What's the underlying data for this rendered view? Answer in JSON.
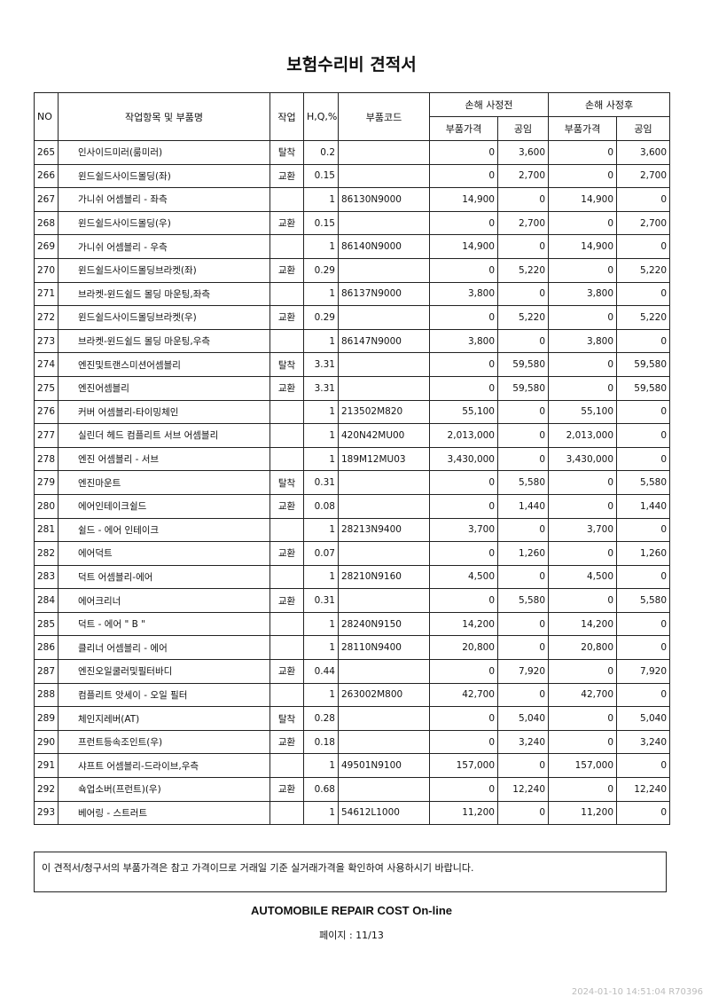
{
  "title": "보험수리비 견적서",
  "headers": {
    "no": "NO",
    "name": "작업항목 및 부품명",
    "work": "작업",
    "hq": "H,Q,%",
    "code": "부품코드",
    "before": "손해 사정전",
    "after": "손해 사정후",
    "part_price": "부품가격",
    "labor": "공임"
  },
  "rows": [
    [
      "265",
      "인사이드미러(룸미러)",
      "탈착",
      "0.2",
      "",
      "0",
      "3,600",
      "0",
      "3,600"
    ],
    [
      "266",
      "윈드쉴드사이드몰딩(좌)",
      "교환",
      "0.15",
      "",
      "0",
      "2,700",
      "0",
      "2,700"
    ],
    [
      "267",
      "가니쉬 어셈블리 - 좌측",
      "",
      "1",
      "86130N9000",
      "14,900",
      "0",
      "14,900",
      "0"
    ],
    [
      "268",
      "윈드쉴드사이드몰딩(우)",
      "교환",
      "0.15",
      "",
      "0",
      "2,700",
      "0",
      "2,700"
    ],
    [
      "269",
      "가니쉬 어셈블리 - 우측",
      "",
      "1",
      "86140N9000",
      "14,900",
      "0",
      "14,900",
      "0"
    ],
    [
      "270",
      "윈드쉴드사이드몰딩브라켓(좌)",
      "교환",
      "0.29",
      "",
      "0",
      "5,220",
      "0",
      "5,220"
    ],
    [
      "271",
      "브라켓-윈드쉴드 몰딩 마운팅,좌측",
      "",
      "1",
      "86137N9000",
      "3,800",
      "0",
      "3,800",
      "0"
    ],
    [
      "272",
      "윈드쉴드사이드몰딩브라켓(우)",
      "교환",
      "0.29",
      "",
      "0",
      "5,220",
      "0",
      "5,220"
    ],
    [
      "273",
      "브라켓-윈드쉴드 몰딩 마운팅,우측",
      "",
      "1",
      "86147N9000",
      "3,800",
      "0",
      "3,800",
      "0"
    ],
    [
      "274",
      "엔진및트랜스미션어셈블리",
      "탈착",
      "3.31",
      "",
      "0",
      "59,580",
      "0",
      "59,580"
    ],
    [
      "275",
      "엔진어셈블리",
      "교환",
      "3.31",
      "",
      "0",
      "59,580",
      "0",
      "59,580"
    ],
    [
      "276",
      "커버 어셈블리-타이밍체인",
      "",
      "1",
      "213502M820",
      "55,100",
      "0",
      "55,100",
      "0"
    ],
    [
      "277",
      "실린더 헤드 컴플리트 서브 어셈블리",
      "",
      "1",
      "420N42MU00",
      "2,013,000",
      "0",
      "2,013,000",
      "0"
    ],
    [
      "278",
      "엔진 어셈블리 - 서브",
      "",
      "1",
      "189M12MU03",
      "3,430,000",
      "0",
      "3,430,000",
      "0"
    ],
    [
      "279",
      "엔진마운트",
      "탈착",
      "0.31",
      "",
      "0",
      "5,580",
      "0",
      "5,580"
    ],
    [
      "280",
      "에어인테이크쉴드",
      "교환",
      "0.08",
      "",
      "0",
      "1,440",
      "0",
      "1,440"
    ],
    [
      "281",
      "쉴드 - 에어 인테이크",
      "",
      "1",
      "28213N9400",
      "3,700",
      "0",
      "3,700",
      "0"
    ],
    [
      "282",
      "에어덕트",
      "교환",
      "0.07",
      "",
      "0",
      "1,260",
      "0",
      "1,260"
    ],
    [
      "283",
      "덕트 어셈블리-에어",
      "",
      "1",
      "28210N9160",
      "4,500",
      "0",
      "4,500",
      "0"
    ],
    [
      "284",
      "에어크리너",
      "교환",
      "0.31",
      "",
      "0",
      "5,580",
      "0",
      "5,580"
    ],
    [
      "285",
      "덕트 - 에어 \" B \"",
      "",
      "1",
      "28240N9150",
      "14,200",
      "0",
      "14,200",
      "0"
    ],
    [
      "286",
      "클리너 어셈블리 - 에어",
      "",
      "1",
      "28110N9400",
      "20,800",
      "0",
      "20,800",
      "0"
    ],
    [
      "287",
      "엔진오일쿨러및필터바디",
      "교환",
      "0.44",
      "",
      "0",
      "7,920",
      "0",
      "7,920"
    ],
    [
      "288",
      "컴플리트 앗세이 - 오일 필터",
      "",
      "1",
      "263002M800",
      "42,700",
      "0",
      "42,700",
      "0"
    ],
    [
      "289",
      "체인지레버(AT)",
      "탈착",
      "0.28",
      "",
      "0",
      "5,040",
      "0",
      "5,040"
    ],
    [
      "290",
      "프런트등속조인트(우)",
      "교환",
      "0.18",
      "",
      "0",
      "3,240",
      "0",
      "3,240"
    ],
    [
      "291",
      "샤프트 어셈블리-드라이브,우측",
      "",
      "1",
      "49501N9100",
      "157,000",
      "0",
      "157,000",
      "0"
    ],
    [
      "292",
      "쇽업소버(프런트)(우)",
      "교환",
      "0.68",
      "",
      "0",
      "12,240",
      "0",
      "12,240"
    ],
    [
      "293",
      "베어링 - 스트러트",
      "",
      "1",
      "54612L1000",
      "11,200",
      "0",
      "11,200",
      "0"
    ]
  ],
  "notice": "이 견적서/청구서의 부품가격은 참고 가격이므로 거래일 기준 실거래가격을 확인하여 사용하시기 바랍니다.",
  "brand": "AUTOMOBILE REPAIR COST On-line",
  "page_label": "페이지 : 11/13",
  "timestamp": "2024-01-10  14:51:04  R70396"
}
